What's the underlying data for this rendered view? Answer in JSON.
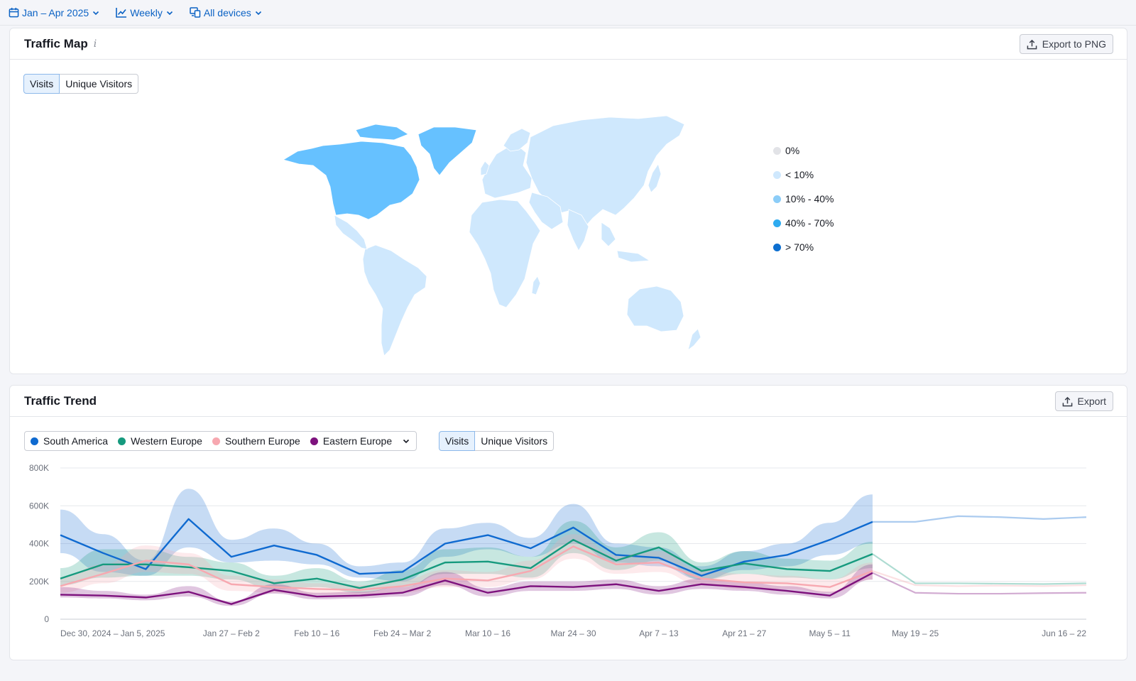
{
  "topbar": {
    "date_range": "Jan – Apr 2025",
    "granularity": "Weekly",
    "devices": "All devices"
  },
  "traffic_map": {
    "title": "Traffic Map",
    "info": "i",
    "export_label": "Export to PNG",
    "tabs": [
      "Visits",
      "Unique Visitors"
    ],
    "active_tab": "Visits",
    "legend": [
      {
        "label": "0%",
        "color": "#e2e3e7"
      },
      {
        "label": "< 10%",
        "color": "#cfe8fd"
      },
      {
        "label": "10% - 40%",
        "color": "#8ccdf8"
      },
      {
        "label": "40% - 70%",
        "color": "#2eabf0"
      },
      {
        "label": "> 70%",
        "color": "#0d6fd0"
      }
    ],
    "colors": {
      "highlight": "#66c1ff",
      "base": "#cfe8fd"
    }
  },
  "traffic_trend": {
    "title": "Traffic Trend",
    "export_label": "Export",
    "tabs": [
      "Visits",
      "Unique Visitors"
    ],
    "active_tab": "Visits",
    "series_selector": [
      {
        "name": "South America",
        "color": "#0f6ad0"
      },
      {
        "name": "Western Europe",
        "color": "#169a7e"
      },
      {
        "name": "Southern Europe",
        "color": "#f7a8b0"
      },
      {
        "name": "Eastern Europe",
        "color": "#7d127d"
      }
    ]
  },
  "chart_data": {
    "type": "line",
    "ylim": [
      0,
      800000
    ],
    "y_ticks": [
      "0",
      "200K",
      "400K",
      "600K",
      "800K"
    ],
    "x_tick_labels": [
      "Dec 30, 2024 – Jan 5, 2025",
      "Jan 27 – Feb 2",
      "Feb 10 – 16",
      "Feb 24 – Mar 2",
      "Mar 10 – 16",
      "Mar 24 – 30",
      "Apr 7 – 13",
      "Apr 21 – 27",
      "May 5 – 11",
      "May 19 – 25",
      "Jun 16 – 22"
    ],
    "x": [
      "Dec 30 – Jan 5",
      "Jan 6 – 12",
      "Jan 13 – 19",
      "Jan 20 – 26",
      "Jan 27 – Feb 2",
      "Feb 3 – 9",
      "Feb 10 – 16",
      "Feb 17 – 23",
      "Feb 24 – Mar 2",
      "Mar 3 – 9",
      "Mar 10 – 16",
      "Mar 17 – 23",
      "Mar 24 – 30",
      "Mar 31 – Apr 6",
      "Apr 7 – 13",
      "Apr 14 – 20",
      "Apr 21 – 27",
      "Apr 28 – May 4",
      "May 5 – 11",
      "May 12 – 18",
      "May 19 – 25",
      "May 26 – Jun 1",
      "Jun 2 – 8",
      "Jun 9 – 15",
      "Jun 16 – 22"
    ],
    "actual_count": 20,
    "series": [
      {
        "name": "South America",
        "color": "#0f6ad0",
        "values": [
          445000,
          350000,
          265000,
          530000,
          330000,
          390000,
          340000,
          240000,
          250000,
          400000,
          445000,
          375000,
          485000,
          340000,
          325000,
          230000,
          305000,
          340000,
          420000,
          515000,
          515000,
          545000,
          540000,
          530000,
          540000
        ],
        "band": [
          [
            350000,
            580000
          ],
          [
            250000,
            450000
          ],
          [
            230000,
            310000
          ],
          [
            380000,
            690000
          ],
          [
            300000,
            420000
          ],
          [
            310000,
            480000
          ],
          [
            290000,
            400000
          ],
          [
            220000,
            280000
          ],
          [
            200000,
            300000
          ],
          [
            330000,
            480000
          ],
          [
            370000,
            510000
          ],
          [
            330000,
            430000
          ],
          [
            400000,
            610000
          ],
          [
            300000,
            400000
          ],
          [
            280000,
            380000
          ],
          [
            210000,
            280000
          ],
          [
            260000,
            360000
          ],
          [
            280000,
            400000
          ],
          [
            340000,
            510000
          ],
          [
            400000,
            660000
          ]
        ]
      },
      {
        "name": "Western Europe",
        "color": "#169a7e",
        "values": [
          215000,
          290000,
          290000,
          275000,
          255000,
          190000,
          215000,
          165000,
          210000,
          300000,
          305000,
          270000,
          420000,
          310000,
          380000,
          255000,
          295000,
          265000,
          255000,
          345000,
          190000,
          190000,
          188000,
          186000,
          190000
        ],
        "band": [
          [
            180000,
            270000
          ],
          [
            220000,
            370000
          ],
          [
            230000,
            370000
          ],
          [
            230000,
            330000
          ],
          [
            210000,
            300000
          ],
          [
            160000,
            230000
          ],
          [
            170000,
            270000
          ],
          [
            140000,
            200000
          ],
          [
            170000,
            260000
          ],
          [
            240000,
            370000
          ],
          [
            240000,
            380000
          ],
          [
            220000,
            330000
          ],
          [
            350000,
            520000
          ],
          [
            260000,
            380000
          ],
          [
            310000,
            460000
          ],
          [
            210000,
            300000
          ],
          [
            240000,
            360000
          ],
          [
            220000,
            320000
          ],
          [
            210000,
            310000
          ],
          [
            270000,
            410000
          ]
        ]
      },
      {
        "name": "Southern Europe",
        "color": "#f7a8b0",
        "values": [
          175000,
          240000,
          310000,
          290000,
          185000,
          170000,
          160000,
          155000,
          175000,
          215000,
          205000,
          255000,
          385000,
          290000,
          300000,
          215000,
          195000,
          190000,
          170000,
          255000,
          180000,
          175000,
          178000,
          175000,
          180000
        ],
        "band": [
          [
            140000,
            220000
          ],
          [
            190000,
            290000
          ],
          [
            250000,
            390000
          ],
          [
            240000,
            350000
          ],
          [
            150000,
            230000
          ],
          [
            140000,
            210000
          ],
          [
            130000,
            190000
          ],
          [
            130000,
            180000
          ],
          [
            140000,
            210000
          ],
          [
            170000,
            260000
          ],
          [
            170000,
            250000
          ],
          [
            210000,
            310000
          ],
          [
            320000,
            450000
          ],
          [
            240000,
            340000
          ],
          [
            250000,
            360000
          ],
          [
            180000,
            260000
          ],
          [
            160000,
            240000
          ],
          [
            160000,
            230000
          ],
          [
            140000,
            210000
          ],
          [
            210000,
            300000
          ]
        ]
      },
      {
        "name": "Eastern Europe",
        "color": "#7d127d",
        "values": [
          130000,
          125000,
          115000,
          145000,
          80000,
          155000,
          120000,
          125000,
          140000,
          205000,
          140000,
          175000,
          170000,
          185000,
          150000,
          185000,
          170000,
          150000,
          125000,
          245000,
          140000,
          135000,
          135000,
          138000,
          140000
        ],
        "band": [
          [
            115000,
            170000
          ],
          [
            110000,
            150000
          ],
          [
            100000,
            130000
          ],
          [
            120000,
            175000
          ],
          [
            70000,
            95000
          ],
          [
            135000,
            185000
          ],
          [
            105000,
            140000
          ],
          [
            110000,
            145000
          ],
          [
            120000,
            170000
          ],
          [
            180000,
            250000
          ],
          [
            120000,
            165000
          ],
          [
            150000,
            200000
          ],
          [
            150000,
            200000
          ],
          [
            160000,
            210000
          ],
          [
            130000,
            175000
          ],
          [
            160000,
            215000
          ],
          [
            150000,
            195000
          ],
          [
            130000,
            175000
          ],
          [
            110000,
            145000
          ],
          [
            210000,
            290000
          ]
        ]
      }
    ]
  }
}
